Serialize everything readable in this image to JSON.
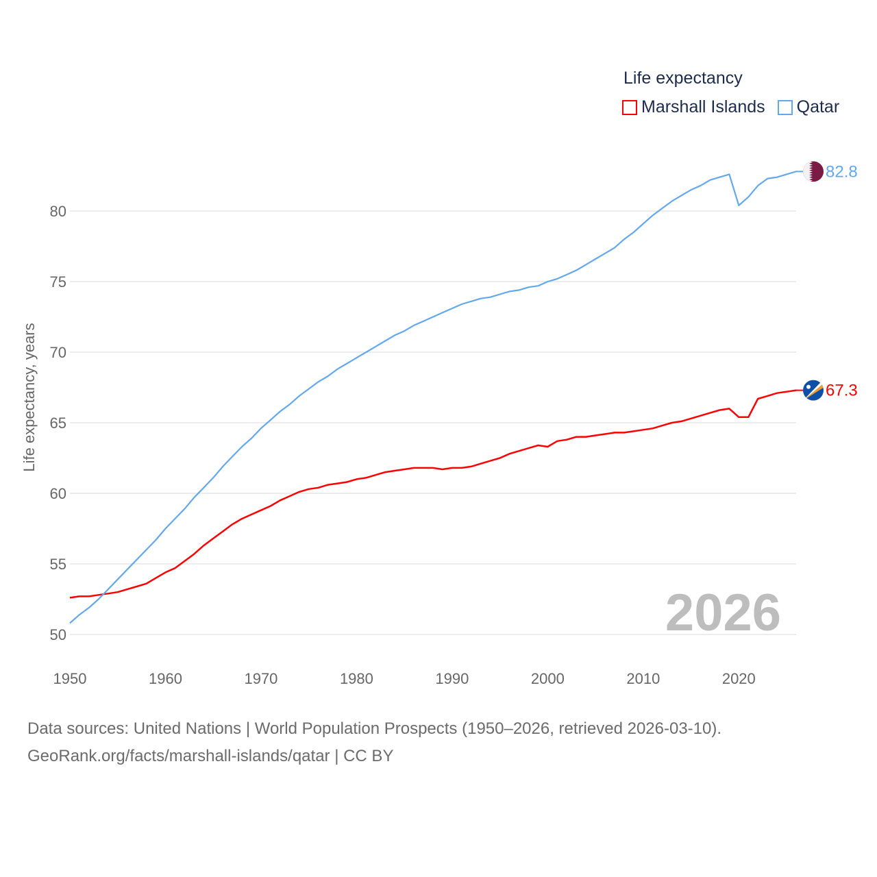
{
  "chart_data": {
    "type": "line",
    "title": "Life expectancy",
    "xlabel": "",
    "ylabel": "Life expectancy, years",
    "xlim": [
      1950,
      2026
    ],
    "ylim": [
      50,
      84
    ],
    "x_ticks": [
      "1950",
      "1960",
      "1970",
      "1980",
      "1990",
      "2000",
      "2010",
      "2020"
    ],
    "y_ticks": [
      "50",
      "55",
      "60",
      "65",
      "70",
      "75",
      "80"
    ],
    "grid": true,
    "legend_position": "top-right",
    "year_watermark": "2026",
    "x": [
      1950,
      1951,
      1952,
      1953,
      1954,
      1955,
      1956,
      1957,
      1958,
      1959,
      1960,
      1961,
      1962,
      1963,
      1964,
      1965,
      1966,
      1967,
      1968,
      1969,
      1970,
      1971,
      1972,
      1973,
      1974,
      1975,
      1976,
      1977,
      1978,
      1979,
      1980,
      1981,
      1982,
      1983,
      1984,
      1985,
      1986,
      1987,
      1988,
      1989,
      1990,
      1991,
      1992,
      1993,
      1994,
      1995,
      1996,
      1997,
      1998,
      1999,
      2000,
      2001,
      2002,
      2003,
      2004,
      2005,
      2006,
      2007,
      2008,
      2009,
      2010,
      2011,
      2012,
      2013,
      2014,
      2015,
      2016,
      2017,
      2018,
      2019,
      2020,
      2021,
      2022,
      2023,
      2024,
      2025,
      2026
    ],
    "series": [
      {
        "name": "Marshall Islands",
        "color": "#ff0000",
        "end_label": "67.3",
        "flag": "marshall-islands",
        "values": [
          52.6,
          52.7,
          52.7,
          52.8,
          52.9,
          53.0,
          53.2,
          53.4,
          53.6,
          54.0,
          54.4,
          54.7,
          55.2,
          55.7,
          56.3,
          56.8,
          57.3,
          57.8,
          58.2,
          58.5,
          58.8,
          59.1,
          59.5,
          59.8,
          60.1,
          60.3,
          60.4,
          60.6,
          60.7,
          60.8,
          61.0,
          61.1,
          61.3,
          61.5,
          61.6,
          61.7,
          61.8,
          61.8,
          61.8,
          61.7,
          61.8,
          61.8,
          61.9,
          62.1,
          62.3,
          62.5,
          62.8,
          63.0,
          63.2,
          63.4,
          63.3,
          63.7,
          63.8,
          64.0,
          64.0,
          64.1,
          64.2,
          64.3,
          64.3,
          64.4,
          64.5,
          64.6,
          64.8,
          65.0,
          65.1,
          65.3,
          65.5,
          65.7,
          65.9,
          66.0,
          65.4,
          65.4,
          66.7,
          66.9,
          67.1,
          67.2,
          67.3
        ]
      },
      {
        "name": "Qatar",
        "color": "#63a8ec",
        "end_label": "82.8",
        "flag": "qatar",
        "values": [
          50.8,
          51.4,
          51.9,
          52.5,
          53.2,
          53.9,
          54.6,
          55.3,
          56.0,
          56.7,
          57.5,
          58.2,
          58.9,
          59.7,
          60.4,
          61.1,
          61.9,
          62.6,
          63.3,
          63.9,
          64.6,
          65.2,
          65.8,
          66.3,
          66.9,
          67.4,
          67.9,
          68.3,
          68.8,
          69.2,
          69.6,
          70.0,
          70.4,
          70.8,
          71.2,
          71.5,
          71.9,
          72.2,
          72.5,
          72.8,
          73.1,
          73.4,
          73.6,
          73.8,
          73.9,
          74.1,
          74.3,
          74.4,
          74.6,
          74.7,
          75.0,
          75.2,
          75.5,
          75.8,
          76.2,
          76.6,
          77.0,
          77.4,
          78.0,
          78.5,
          79.1,
          79.7,
          80.2,
          80.7,
          81.1,
          81.5,
          81.8,
          82.2,
          82.4,
          82.6,
          80.4,
          81.0,
          81.8,
          82.3,
          82.4,
          82.6,
          82.8
        ]
      }
    ]
  },
  "legend": {
    "title": "Life expectancy",
    "items": [
      "Marshall Islands",
      "Qatar"
    ]
  },
  "source": {
    "line1": "Data sources: United Nations | World Population Prospects (1950–2026, retrieved 2026-03-10).",
    "line2": "GeoRank.org/facts/marshall-islands/qatar | CC BY"
  }
}
